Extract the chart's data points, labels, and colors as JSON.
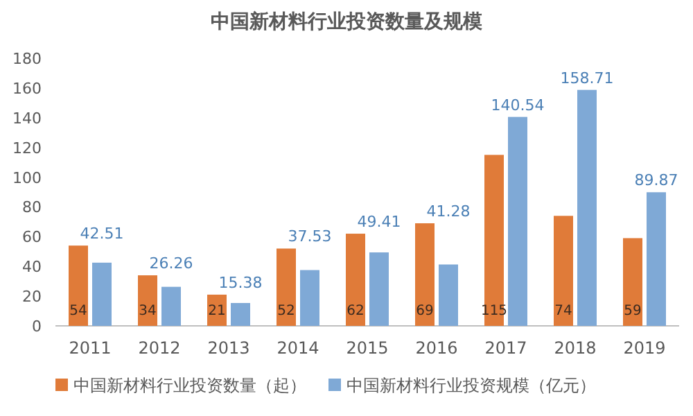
{
  "chart_data": {
    "type": "bar",
    "title": "中国新材料行业投资数量及规模",
    "categories": [
      "2011",
      "2012",
      "2013",
      "2014",
      "2015",
      "2016",
      "2017",
      "2018",
      "2019"
    ],
    "series": [
      {
        "name": "中国新材料行业投资数量（起）",
        "color": "#e07b39",
        "values": [
          54,
          34,
          21,
          52,
          62,
          69,
          115,
          74,
          59
        ]
      },
      {
        "name": "中国新材料行业投资规模（亿元）",
        "color": "#7fa9d6",
        "values": [
          42.51,
          26.26,
          15.38,
          37.53,
          49.41,
          41.28,
          140.54,
          158.71,
          89.87
        ]
      }
    ],
    "ylim": [
      0,
      180
    ],
    "yticks": [
      0,
      20,
      40,
      60,
      80,
      100,
      120,
      140,
      160,
      180
    ],
    "data_labels": true,
    "legend": "bottom"
  }
}
